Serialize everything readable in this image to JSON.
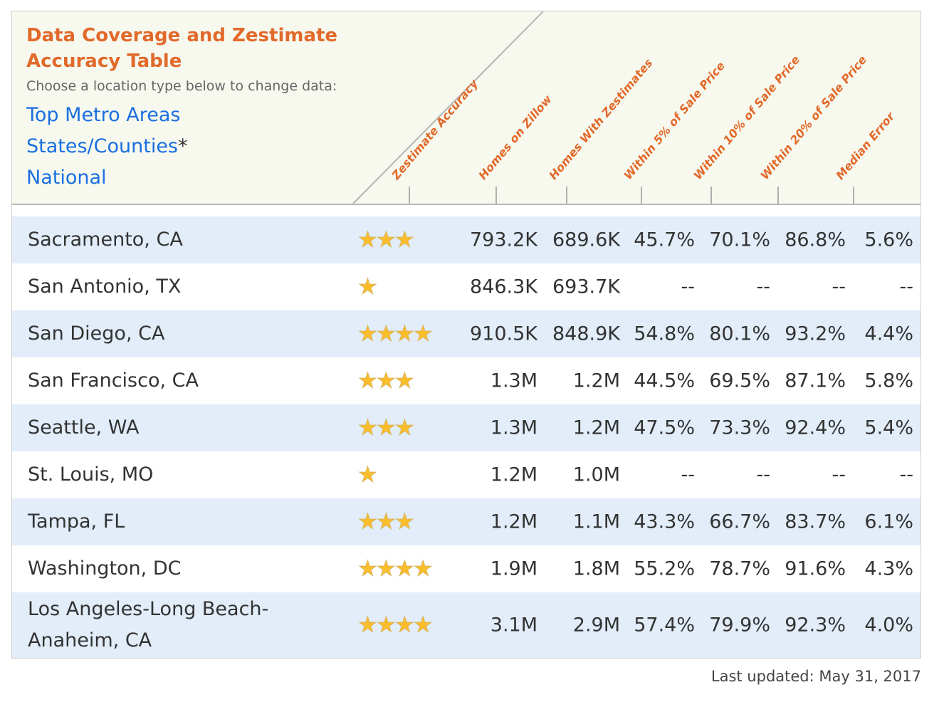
{
  "header": {
    "title": "Data Coverage and Zestimate Accuracy Table",
    "subtitle": "Choose a location type below to change data:",
    "location_types": [
      "Top Metro Areas",
      "States/Counties",
      "National"
    ],
    "asterisk": "*",
    "columns": [
      "Zestimate Accuracy",
      "Homes on Zillow",
      "Homes With Zestimates",
      "Within 5% of Sale Price",
      "Within 10% of Sale Price",
      "Within 20% of Sale Price",
      "Median Error"
    ]
  },
  "colors": {
    "title": "#e2692a",
    "link": "#1a6fe0",
    "row_alt": "#e2edf9",
    "star": "#fbbd2a"
  },
  "rows": [
    {
      "name": "Sacramento, CA",
      "stars": 3,
      "homes": "793.2K",
      "zestimates": "689.6K",
      "w5": "45.7%",
      "w10": "70.1%",
      "w20": "86.8%",
      "median": "5.6%"
    },
    {
      "name": "San Antonio, TX",
      "stars": 1,
      "homes": "846.3K",
      "zestimates": "693.7K",
      "w5": "--",
      "w10": "--",
      "w20": "--",
      "median": "--"
    },
    {
      "name": "San Diego, CA",
      "stars": 4,
      "homes": "910.5K",
      "zestimates": "848.9K",
      "w5": "54.8%",
      "w10": "80.1%",
      "w20": "93.2%",
      "median": "4.4%"
    },
    {
      "name": "San Francisco, CA",
      "stars": 3,
      "homes": "1.3M",
      "zestimates": "1.2M",
      "w5": "44.5%",
      "w10": "69.5%",
      "w20": "87.1%",
      "median": "5.8%"
    },
    {
      "name": "Seattle, WA",
      "stars": 3,
      "homes": "1.3M",
      "zestimates": "1.2M",
      "w5": "47.5%",
      "w10": "73.3%",
      "w20": "92.4%",
      "median": "5.4%"
    },
    {
      "name": "St. Louis, MO",
      "stars": 1,
      "homes": "1.2M",
      "zestimates": "1.0M",
      "w5": "--",
      "w10": "--",
      "w20": "--",
      "median": "--"
    },
    {
      "name": "Tampa, FL",
      "stars": 3,
      "homes": "1.2M",
      "zestimates": "1.1M",
      "w5": "43.3%",
      "w10": "66.7%",
      "w20": "83.7%",
      "median": "6.1%"
    },
    {
      "name": "Washington, DC",
      "stars": 4,
      "homes": "1.9M",
      "zestimates": "1.8M",
      "w5": "55.2%",
      "w10": "78.7%",
      "w20": "91.6%",
      "median": "4.3%"
    },
    {
      "name": "Los Angeles-Long Beach-Anaheim, CA",
      "stars": 4,
      "homes": "3.1M",
      "zestimates": "2.9M",
      "w5": "57.4%",
      "w10": "79.9%",
      "w20": "92.3%",
      "median": "4.0%"
    }
  ],
  "footer": {
    "last_updated": "Last updated: May 31, 2017"
  }
}
